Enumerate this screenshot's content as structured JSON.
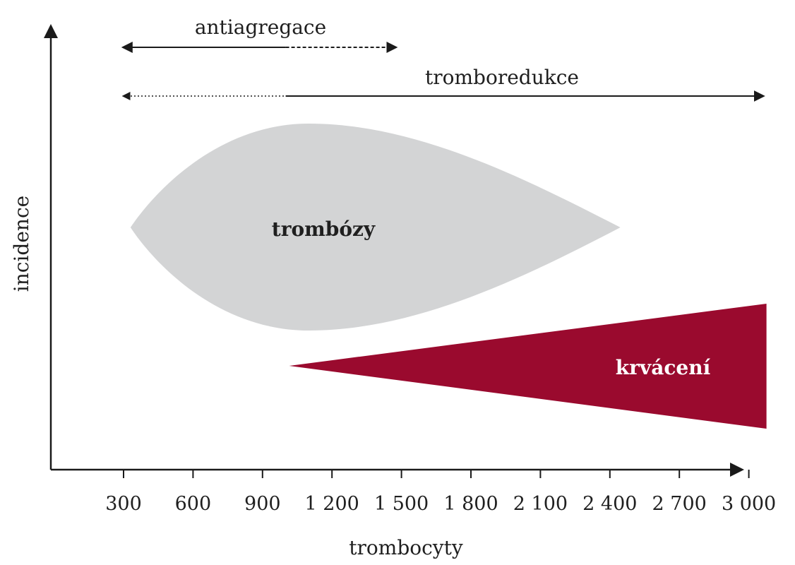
{
  "axes": {
    "y_label": "incidence",
    "x_label": "trombocyty",
    "x_ticks": [
      "300",
      "600",
      "900",
      "1 200",
      "1 500",
      "1 800",
      "2 100",
      "2 400",
      "2 700",
      "3 000"
    ]
  },
  "ranges": {
    "antiagregace": {
      "label": "antiagregace",
      "solid_from": 300,
      "solid_to": 1000,
      "dashed_to": 1450
    },
    "tromboredukce": {
      "label": "tromboredukce",
      "dotted_from": 300,
      "solid_from": 1000,
      "solid_to": 3000
    }
  },
  "regions": {
    "tromboza": {
      "label": "trombózy",
      "color": "#d3d4d5",
      "from": 330,
      "to": 2430,
      "widest_at": 1100
    },
    "krvaceni": {
      "label": "krvácení",
      "color": "#9a0a2e",
      "from": 1000,
      "to": 3000
    }
  },
  "colors": {
    "axis": "#1a1a1a",
    "text": "#1f1f1f"
  }
}
